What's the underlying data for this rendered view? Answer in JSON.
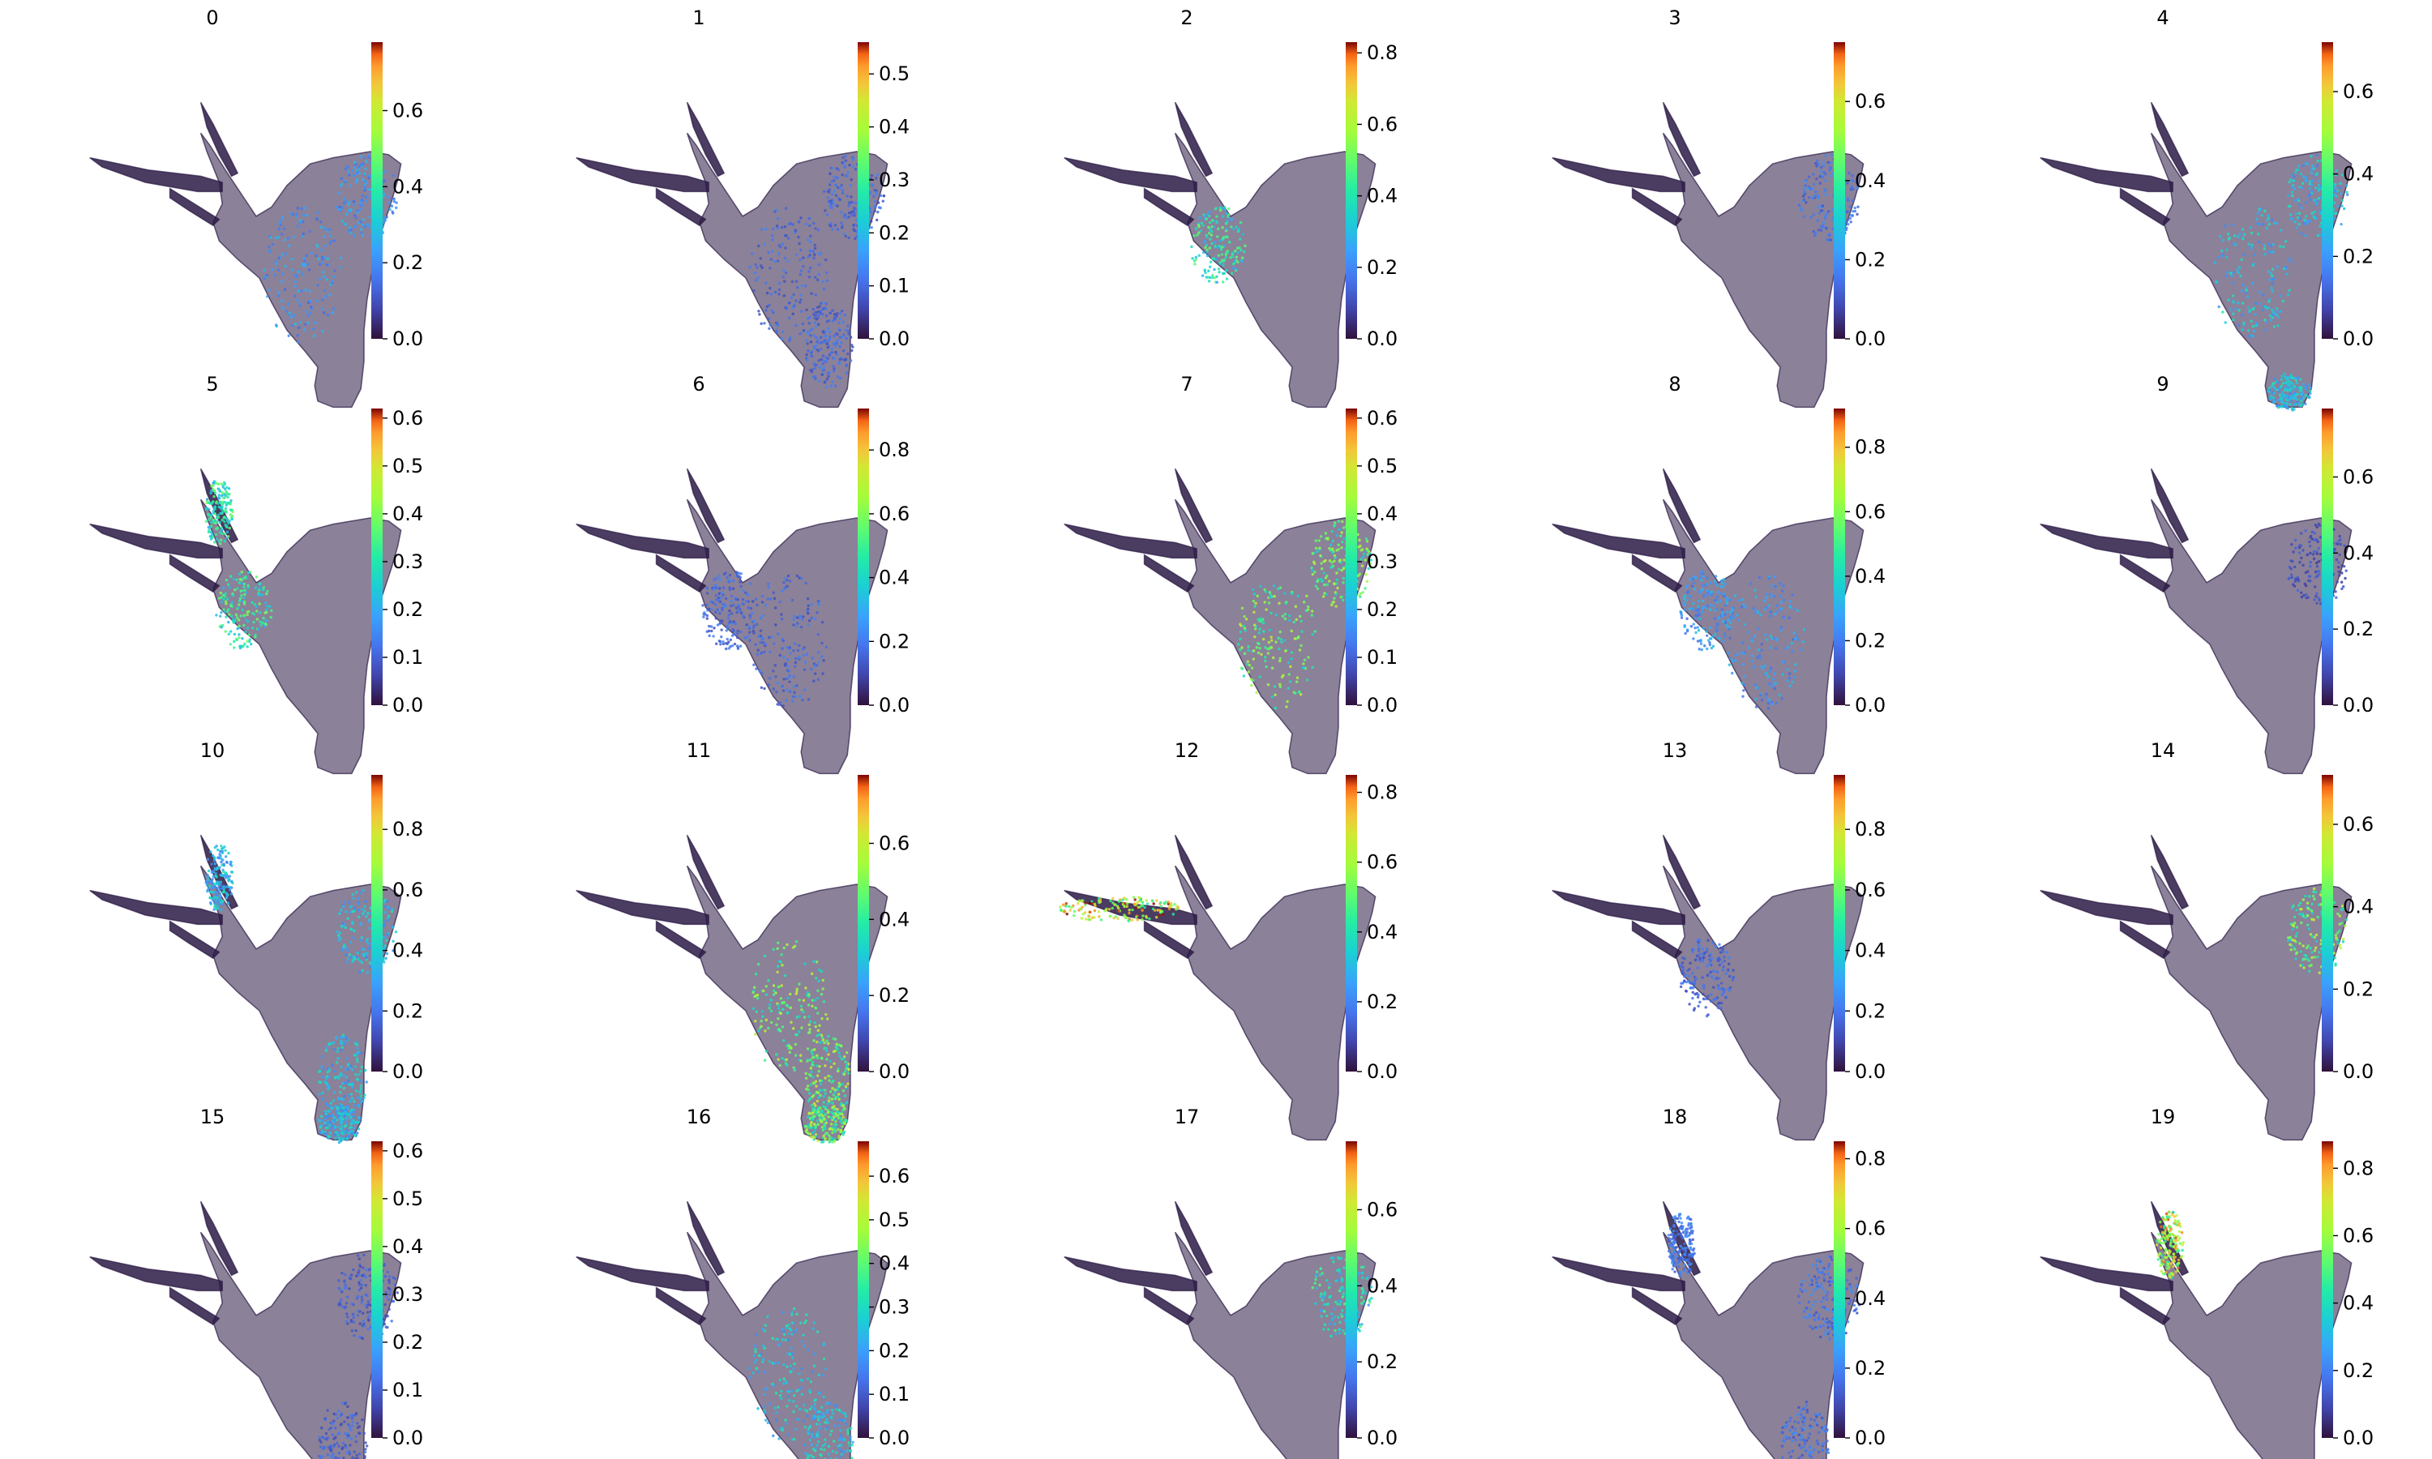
{
  "chart_data": [
    {
      "type": "scatter",
      "title": "0",
      "colormap": "turbo",
      "colorbar_ticks": [
        "0.0",
        "0.2",
        "0.4",
        "0.6"
      ],
      "colorbar_range": [
        0,
        0.78
      ],
      "highlight_regions": [
        "right-lobe",
        "central-band"
      ],
      "highlight_level": 0.25
    },
    {
      "type": "scatter",
      "title": "1",
      "colormap": "turbo",
      "colorbar_ticks": [
        "0.0",
        "0.1",
        "0.2",
        "0.3",
        "0.4",
        "0.5"
      ],
      "colorbar_range": [
        0,
        0.56
      ],
      "highlight_regions": [
        "right-lobe",
        "central-band",
        "lower-body"
      ],
      "highlight_level": 0.12
    },
    {
      "type": "scatter",
      "title": "2",
      "colormap": "turbo",
      "colorbar_ticks": [
        "0.0",
        "0.2",
        "0.4",
        "0.6",
        "0.8"
      ],
      "colorbar_range": [
        0,
        0.83
      ],
      "highlight_regions": [
        "left-lobe"
      ],
      "highlight_level": 0.45
    },
    {
      "type": "scatter",
      "title": "3",
      "colormap": "turbo",
      "colorbar_ticks": [
        "0.0",
        "0.2",
        "0.4",
        "0.6"
      ],
      "colorbar_range": [
        0,
        0.75
      ],
      "highlight_regions": [
        "right-lobe"
      ],
      "highlight_level": 0.18
    },
    {
      "type": "scatter",
      "title": "4",
      "colormap": "turbo",
      "colorbar_ticks": [
        "0.0",
        "0.2",
        "0.4",
        "0.6"
      ],
      "colorbar_range": [
        0,
        0.72
      ],
      "highlight_regions": [
        "right-lobe",
        "central-band",
        "lower-tip"
      ],
      "highlight_level": 0.3
    },
    {
      "type": "scatter",
      "title": "5",
      "colormap": "turbo",
      "colorbar_ticks": [
        "0.0",
        "0.1",
        "0.2",
        "0.3",
        "0.4",
        "0.5",
        "0.6"
      ],
      "colorbar_range": [
        0,
        0.62
      ],
      "highlight_regions": [
        "left-lobe",
        "spike"
      ],
      "highlight_level": 0.35
    },
    {
      "type": "scatter",
      "title": "6",
      "colormap": "turbo",
      "colorbar_ticks": [
        "0.0",
        "0.2",
        "0.4",
        "0.6",
        "0.8"
      ],
      "colorbar_range": [
        0,
        0.93
      ],
      "highlight_regions": [
        "left-lobe",
        "central-band"
      ],
      "highlight_level": 0.2
    },
    {
      "type": "scatter",
      "title": "7",
      "colormap": "turbo",
      "colorbar_ticks": [
        "0.0",
        "0.1",
        "0.2",
        "0.3",
        "0.4",
        "0.5",
        "0.6"
      ],
      "colorbar_range": [
        0,
        0.62
      ],
      "highlight_regions": [
        "right-lobe",
        "central-band"
      ],
      "highlight_level": 0.42
    },
    {
      "type": "scatter",
      "title": "8",
      "colormap": "turbo",
      "colorbar_ticks": [
        "0.0",
        "0.2",
        "0.4",
        "0.6",
        "0.8"
      ],
      "colorbar_range": [
        0,
        0.92
      ],
      "highlight_regions": [
        "left-lobe",
        "central-band"
      ],
      "highlight_level": 0.3
    },
    {
      "type": "scatter",
      "title": "9",
      "colormap": "turbo",
      "colorbar_ticks": [
        "0.0",
        "0.2",
        "0.4",
        "0.6"
      ],
      "colorbar_range": [
        0,
        0.78
      ],
      "highlight_regions": [
        "right-lobe"
      ],
      "highlight_level": 0.12
    },
    {
      "type": "scatter",
      "title": "10",
      "colormap": "turbo",
      "colorbar_ticks": [
        "0.0",
        "0.2",
        "0.4",
        "0.6",
        "0.8"
      ],
      "colorbar_range": [
        0,
        0.98
      ],
      "highlight_regions": [
        "lower-body",
        "lower-tip",
        "right-lobe",
        "spike"
      ],
      "highlight_level": 0.4
    },
    {
      "type": "scatter",
      "title": "11",
      "colormap": "turbo",
      "colorbar_ticks": [
        "0.0",
        "0.2",
        "0.4",
        "0.6"
      ],
      "colorbar_range": [
        0,
        0.78
      ],
      "highlight_regions": [
        "lower-tip",
        "lower-body",
        "central-band"
      ],
      "highlight_level": 0.55
    },
    {
      "type": "scatter",
      "title": "12",
      "colormap": "turbo",
      "colorbar_ticks": [
        "0.0",
        "0.2",
        "0.4",
        "0.6",
        "0.8"
      ],
      "colorbar_range": [
        0,
        0.85
      ],
      "highlight_regions": [
        "left-arm"
      ],
      "highlight_level": 0.75
    },
    {
      "type": "scatter",
      "title": "13",
      "colormap": "turbo",
      "colorbar_ticks": [
        "0.0",
        "0.2",
        "0.4",
        "0.6",
        "0.8"
      ],
      "colorbar_range": [
        0,
        0.98
      ],
      "highlight_regions": [
        "left-lobe"
      ],
      "highlight_level": 0.2
    },
    {
      "type": "scatter",
      "title": "14",
      "colormap": "turbo",
      "colorbar_ticks": [
        "0.0",
        "0.2",
        "0.4",
        "0.6"
      ],
      "colorbar_range": [
        0,
        0.72
      ],
      "highlight_regions": [
        "right-lobe"
      ],
      "highlight_level": 0.5
    },
    {
      "type": "scatter",
      "title": "15",
      "colormap": "turbo",
      "colorbar_ticks": [
        "0.0",
        "0.1",
        "0.2",
        "0.3",
        "0.4",
        "0.5",
        "0.6"
      ],
      "colorbar_range": [
        0,
        0.62
      ],
      "highlight_regions": [
        "right-lobe",
        "lower-body"
      ],
      "highlight_level": 0.12
    },
    {
      "type": "scatter",
      "title": "16",
      "colormap": "turbo",
      "colorbar_ticks": [
        "0.0",
        "0.1",
        "0.2",
        "0.3",
        "0.4",
        "0.5",
        "0.6"
      ],
      "colorbar_range": [
        0,
        0.68
      ],
      "highlight_regions": [
        "central-band",
        "lower-body"
      ],
      "highlight_level": 0.3
    },
    {
      "type": "scatter",
      "title": "17",
      "colormap": "turbo",
      "colorbar_ticks": [
        "0.0",
        "0.2",
        "0.4",
        "0.6"
      ],
      "colorbar_range": [
        0,
        0.78
      ],
      "highlight_regions": [
        "right-lobe"
      ],
      "highlight_level": 0.4
    },
    {
      "type": "scatter",
      "title": "18",
      "colormap": "turbo",
      "colorbar_ticks": [
        "0.0",
        "0.2",
        "0.4",
        "0.6",
        "0.8"
      ],
      "colorbar_range": [
        0,
        0.85
      ],
      "highlight_regions": [
        "right-lobe",
        "lower-body",
        "spike"
      ],
      "highlight_level": 0.2
    },
    {
      "type": "scatter",
      "title": "19",
      "colormap": "turbo",
      "colorbar_ticks": [
        "0.0",
        "0.2",
        "0.4",
        "0.6",
        "0.8"
      ],
      "colorbar_range": [
        0,
        0.88
      ],
      "highlight_regions": [
        "spike"
      ],
      "highlight_level": 0.75
    }
  ]
}
